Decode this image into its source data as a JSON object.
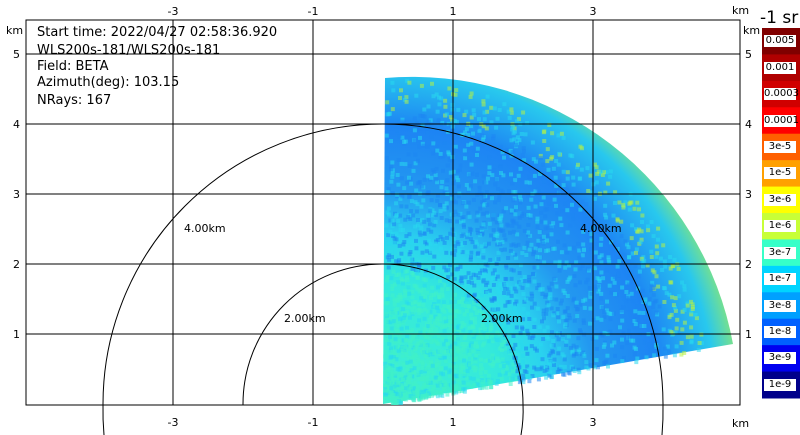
{
  "info": {
    "start_time": "Start time: 2022/04/27 02:58:36.920",
    "radar": "WLS200s-181/WLS200s-181",
    "field": "Field: BETA",
    "azimuth": "Azimuth(deg): 103.15",
    "nrays": "NRays: 167"
  },
  "axes": {
    "x_ticks": [
      "-3",
      "-1",
      "1",
      "3"
    ],
    "y_ticks": [
      "1",
      "2",
      "3",
      "4",
      "5"
    ],
    "unit": "km"
  },
  "range_rings": {
    "inner_label": "2.00km",
    "outer_label": "4.00km"
  },
  "colorbar": {
    "units_title": "-1 sr",
    "labels": [
      "0.005",
      "0.001",
      "0.0003",
      "0.0001",
      "3e-5",
      "1e-5",
      "3e-6",
      "1e-6",
      "3e-7",
      "1e-7",
      "3e-8",
      "1e-8",
      "3e-9",
      "1e-9"
    ],
    "colors": [
      "#800000",
      "#b00000",
      "#d00000",
      "#ff0000",
      "#ff6000",
      "#ffa000",
      "#ffff00",
      "#c8ff37",
      "#37ffc8",
      "#00d4ff",
      "#00a0ff",
      "#0060ff",
      "#0000f0",
      "#00008b"
    ]
  },
  "field_colors": {
    "low": "#3ff0c8",
    "mid": "#28d8ee",
    "high": "#1d86f2",
    "yellow": "#b7f242"
  }
}
